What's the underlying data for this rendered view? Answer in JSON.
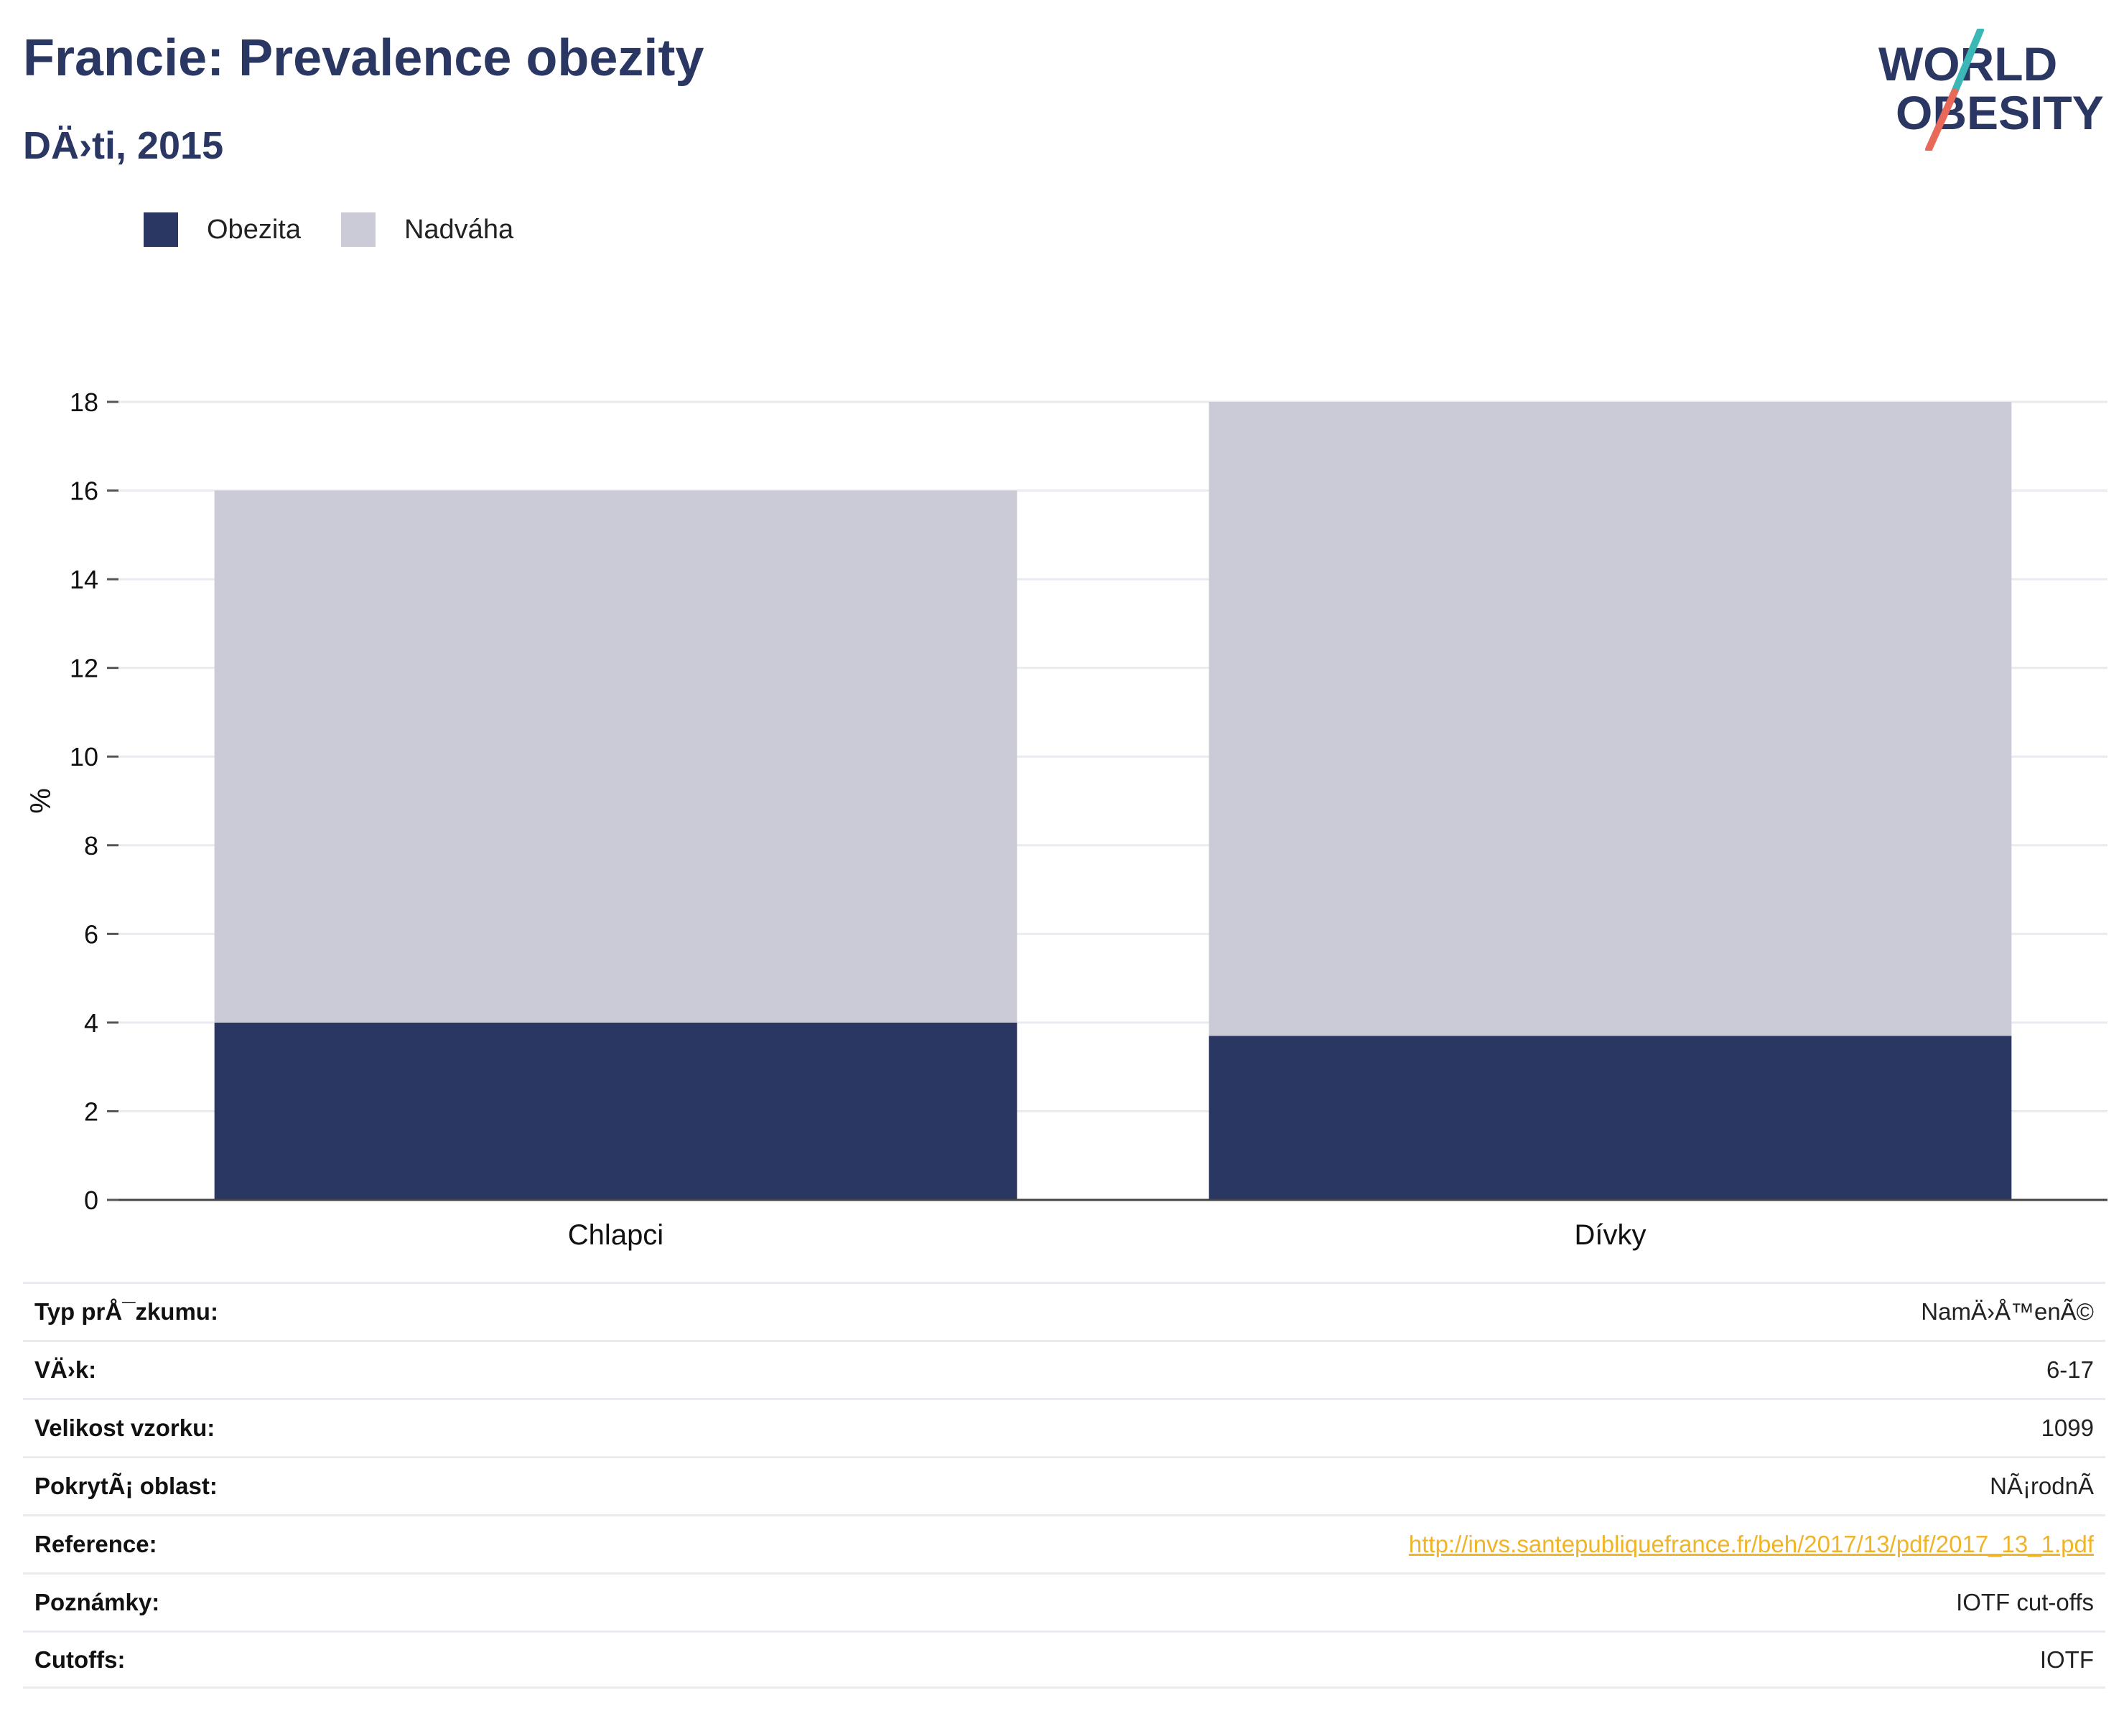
{
  "header": {
    "title": "Francie: Prevalence obezity",
    "subtitle": "DÄ›ti, 2015"
  },
  "logo": {
    "line1": "WORLD",
    "line2": "OBESITY",
    "colors": {
      "text": "#2b3763",
      "slash_top": "#3bb7b6",
      "slash_bottom": "#e8685a"
    }
  },
  "legend": {
    "items": [
      {
        "label": "Obezita",
        "color": "#2b3763"
      },
      {
        "label": "Nadváha",
        "color": "#cacbd6"
      }
    ]
  },
  "chart_data": {
    "type": "bar",
    "stacked": true,
    "categories": [
      "Chlapci",
      "Dívky"
    ],
    "series": [
      {
        "name": "Obezita",
        "values": [
          4.0,
          3.7
        ],
        "color": "#2b3763"
      },
      {
        "name": "Nadváha",
        "values": [
          12.0,
          14.3
        ],
        "color": "#cacbd6"
      }
    ],
    "ylabel": "%",
    "ylim": [
      0,
      18
    ],
    "yticks": [
      0,
      2,
      4,
      6,
      8,
      10,
      12,
      14,
      16,
      18
    ],
    "grid": true,
    "legend_position": "top-left"
  },
  "info": {
    "rows": [
      {
        "label": "Typ prÅ¯zkumu:",
        "value": "NamÄ›Å™enÃ©"
      },
      {
        "label": "VÄ›k:",
        "value": "6-17"
      },
      {
        "label": "Velikost vzorku:",
        "value": "1099"
      },
      {
        "label": "PokrytÃ¡ oblast:",
        "value": "NÃ¡rodnÃ"
      },
      {
        "label": "Reference:",
        "value": "http://invs.santepubliquefrance.fr/beh/2017/13/pdf/2017_13_1.pdf",
        "link": true
      },
      {
        "label": "Poznámky:",
        "value": "IOTF cut-offs"
      },
      {
        "label": "Cutoffs:",
        "value": "IOTF"
      }
    ]
  }
}
